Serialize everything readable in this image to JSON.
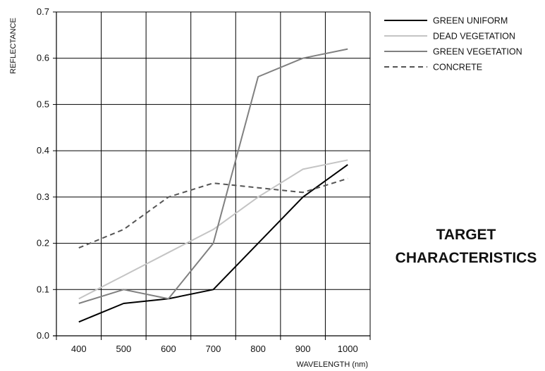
{
  "chart_data": {
    "type": "line",
    "title": "TARGET CHARACTERISTICS",
    "title_lines": [
      "TARGET",
      "CHARACTERISTICS"
    ],
    "xlabel": "WAVELENGTH (nm)",
    "ylabel": "REFLECTANCE",
    "x": [
      400,
      500,
      600,
      700,
      800,
      900,
      1000
    ],
    "xlim": [
      350,
      1050
    ],
    "ylim": [
      0.0,
      0.7
    ],
    "x_ticks": [
      "400",
      "500",
      "600",
      "700",
      "800",
      "900",
      "1000"
    ],
    "y_ticks": [
      "0.0",
      "0.1",
      "0.2",
      "0.3",
      "0.4",
      "0.5",
      "0.6",
      "0.7"
    ],
    "grid": true,
    "legend_position": "top-right",
    "series": [
      {
        "name": "GREEN UNIFORM",
        "values": [
          0.03,
          0.07,
          0.08,
          0.1,
          0.2,
          0.3,
          0.37
        ],
        "color": "#000000",
        "dash": "solid"
      },
      {
        "name": "DEAD VEGETATION",
        "values": [
          0.08,
          0.13,
          0.18,
          0.23,
          0.3,
          0.36,
          0.38
        ],
        "color": "#c4c4c4",
        "dash": "solid"
      },
      {
        "name": "GREEN VEGETATION",
        "values": [
          0.07,
          0.1,
          0.08,
          0.2,
          0.56,
          0.6,
          0.62
        ],
        "color": "#808080",
        "dash": "solid"
      },
      {
        "name": "CONCRETE",
        "values": [
          0.19,
          0.23,
          0.3,
          0.33,
          0.32,
          0.31,
          0.34
        ],
        "color": "#555555",
        "dash": "dashed"
      }
    ]
  }
}
